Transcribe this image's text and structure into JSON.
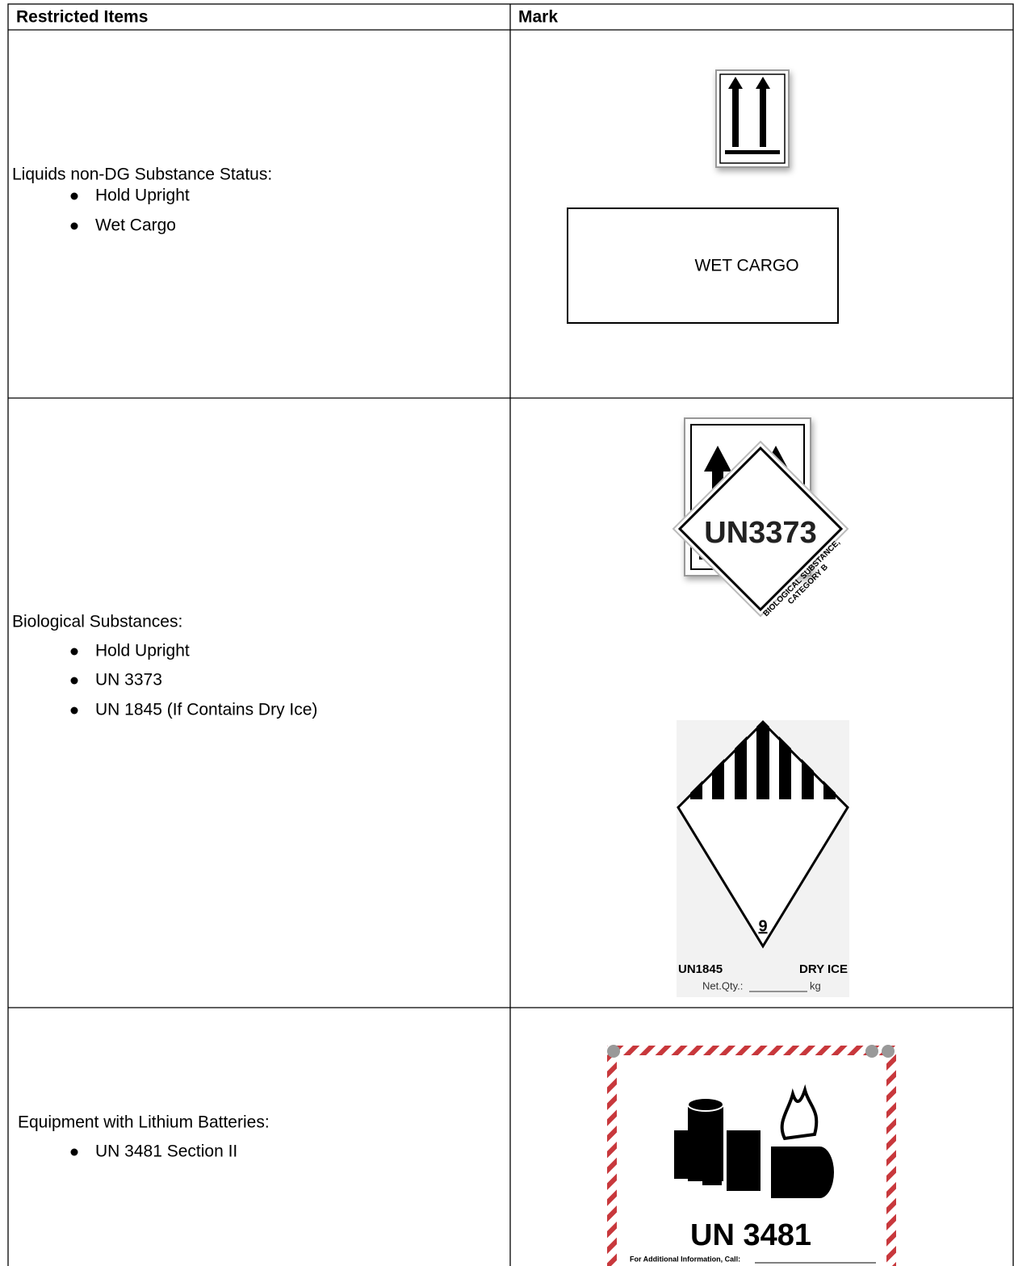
{
  "table": {
    "headers": [
      "Restricted Items",
      "Mark"
    ],
    "rows": [
      {
        "item": "Liquids non-DG Substance Status:",
        "bullets": [
          "Hold Upright",
          "Wet Cargo"
        ],
        "marks": {
          "wet_cargo": "WET CARGO"
        }
      },
      {
        "item": "Biological Substances:",
        "bullets": [
          "Hold Upright",
          "UN 3373",
          "UN 1845 (If Contains Dry Ice)"
        ],
        "marks": {
          "un3373": "UN3373",
          "un3373_sub": [
            "BIOLOGICAL SUBSTANCE,",
            "CATEGORY B"
          ],
          "class": "9",
          "un1845": "UN1845",
          "dry_ice": "DRY ICE",
          "net_qty": "Net.Qty.:",
          "unit": "kg"
        }
      },
      {
        "item": "Equipment with Lithium Batteries:",
        "bullets": [
          "UN 3481 Section II"
        ],
        "marks": {
          "un3481": "UN 3481",
          "info": "For Additional Information, Call:"
        }
      }
    ]
  }
}
